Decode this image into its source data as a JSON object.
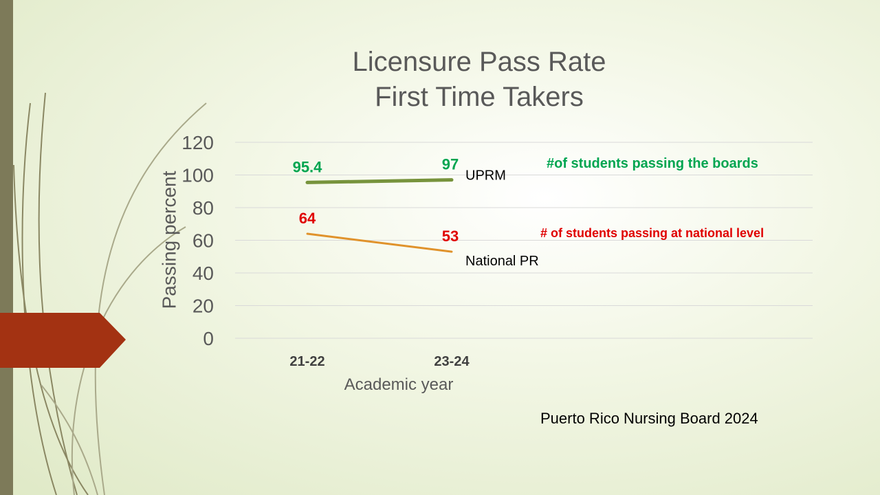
{
  "slide": {
    "title_line1": "Licensure Pass Rate",
    "title_line2": "First Time Takers",
    "source_note": "Puerto Rico Nursing Board 2024"
  },
  "annotations": {
    "uprm_note": "#of students passing the boards",
    "national_note": "# of students passing at national level"
  },
  "colors": {
    "uprm": "#77933c",
    "national": "#e0922b",
    "uprm_label": "#00a550",
    "national_label": "#e00000",
    "accent_arrow": "#a33212",
    "left_bar": "#7d7a59"
  },
  "chart_data": {
    "type": "line",
    "title": "Licensure Pass Rate First Time Takers",
    "xlabel": "Academic year",
    "ylabel": "Passing percent",
    "categories": [
      "21-22",
      "23-24"
    ],
    "ylim": [
      0,
      120
    ],
    "yticks": [
      0,
      20,
      40,
      60,
      80,
      100,
      120
    ],
    "grid": true,
    "series": [
      {
        "name": "UPRM",
        "values": [
          95.4,
          97
        ],
        "data_labels": [
          "95.4",
          "97"
        ]
      },
      {
        "name": "National PR",
        "values": [
          64,
          53
        ],
        "data_labels": [
          "64",
          "53"
        ]
      }
    ]
  }
}
